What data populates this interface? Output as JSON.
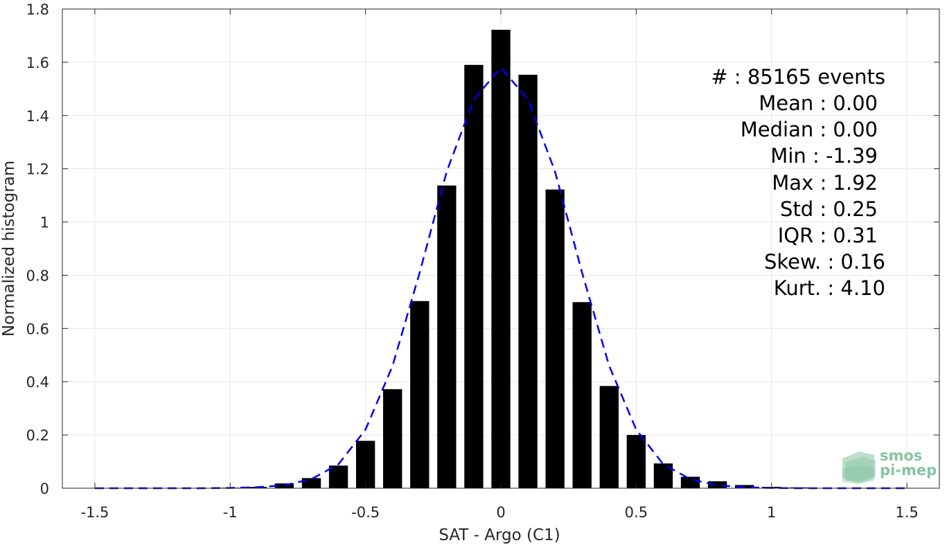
{
  "chart_data": {
    "type": "bar",
    "xlabel": "SAT - Argo (C1)",
    "ylabel": "Normalized histogram",
    "xlim": [
      -1.62,
      1.62
    ],
    "ylim": [
      0,
      1.8
    ],
    "xticks": [
      -1.5,
      -1,
      -0.5,
      0,
      0.5,
      1,
      1.5
    ],
    "xtick_labels": [
      "-1.5",
      "-1",
      "-0.5",
      "0",
      "0.5",
      "1",
      "1.5"
    ],
    "yticks": [
      0,
      0.2,
      0.4,
      0.6,
      0.8,
      1,
      1.2,
      1.4,
      1.6,
      1.8
    ],
    "ytick_labels": [
      "0",
      "0.2",
      "0.4",
      "0.6",
      "0.8",
      "1",
      "1.2",
      "1.4",
      "1.6",
      "1.8"
    ],
    "grid": true,
    "bar_color": "#000000",
    "bar_width": 0.07,
    "bars": {
      "x": [
        -1.0,
        -0.9,
        -0.8,
        -0.7,
        -0.6,
        -0.5,
        -0.4,
        -0.3,
        -0.2,
        -0.1,
        0.0,
        0.1,
        0.2,
        0.3,
        0.4,
        0.5,
        0.6,
        0.7,
        0.8,
        0.9,
        1.0,
        1.1
      ],
      "values": [
        0.002,
        0.005,
        0.018,
        0.038,
        0.085,
        0.178,
        0.372,
        0.703,
        1.137,
        1.59,
        1.722,
        1.553,
        1.122,
        0.699,
        0.384,
        0.2,
        0.093,
        0.043,
        0.026,
        0.012,
        0.005,
        0.003
      ]
    },
    "fit": {
      "style": "dashed",
      "color": "#0000ee",
      "x": [
        -1.5,
        -1.4,
        -1.3,
        -1.2,
        -1.1,
        -1.0,
        -0.9,
        -0.8,
        -0.7,
        -0.6,
        -0.5,
        -0.4,
        -0.3,
        -0.2,
        -0.1,
        0.0,
        0.1,
        0.2,
        0.3,
        0.4,
        0.5,
        0.6,
        0.7,
        0.8,
        0.9,
        1.0,
        1.1,
        1.2,
        1.3,
        1.4,
        1.5
      ],
      "y": [
        0,
        0,
        0,
        0,
        0,
        0.001,
        0.004,
        0.011,
        0.034,
        0.09,
        0.22,
        0.46,
        0.81,
        1.19,
        1.46,
        1.58,
        1.46,
        1.19,
        0.81,
        0.46,
        0.22,
        0.09,
        0.034,
        0.011,
        0.004,
        0.001,
        0,
        0,
        0,
        0,
        0
      ]
    }
  },
  "stats": [
    {
      "label": "#  : 85165 events"
    },
    {
      "label": "Mean : 0.00"
    },
    {
      "label": "Median : 0.00"
    },
    {
      "label": "Min : -1.39"
    },
    {
      "label": "Max : 1.92"
    },
    {
      "label": "Std : 0.25"
    },
    {
      "label": "IQR : 0.31"
    },
    {
      "label": "Skew. : 0.16"
    },
    {
      "label": "Kurt. : 4.10"
    }
  ],
  "logo": {
    "line1": "smos",
    "line2": "pi-mep",
    "color": "#86c3a0"
  }
}
